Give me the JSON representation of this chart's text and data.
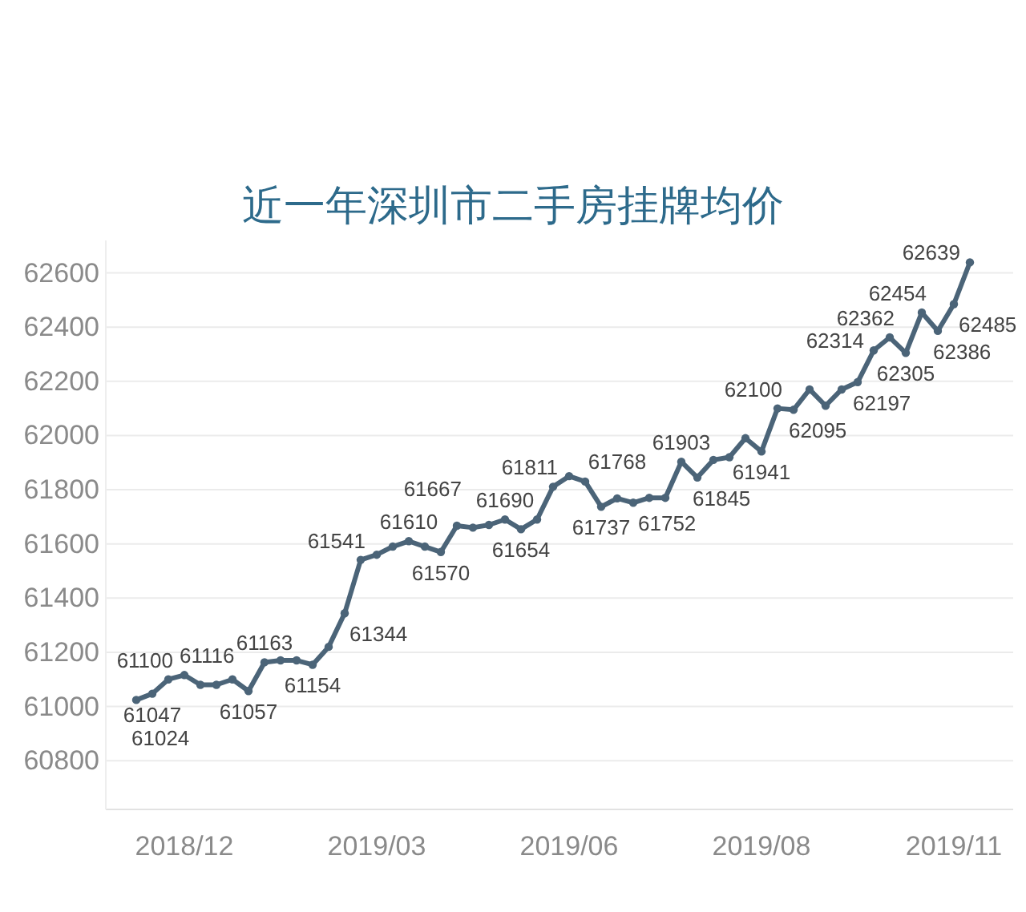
{
  "chart_data": {
    "type": "line",
    "title": "近一年深圳市二手房挂牌均价",
    "categories": [
      null,
      null,
      null,
      "2018/12",
      null,
      null,
      null,
      null,
      null,
      null,
      null,
      null,
      null,
      null,
      null,
      "2019/03",
      null,
      null,
      null,
      null,
      null,
      null,
      null,
      null,
      null,
      null,
      null,
      "2019/06",
      null,
      null,
      null,
      null,
      null,
      null,
      null,
      null,
      null,
      null,
      null,
      "2019/08",
      null,
      null,
      null,
      null,
      null,
      null,
      null,
      null,
      null,
      null,
      null,
      "2019/11",
      null
    ],
    "series": [
      {
        "color": "#4b6478",
        "values": [
          61024,
          61047,
          61100,
          61116,
          61080,
          61080,
          61100,
          61057,
          61163,
          61170,
          61170,
          61154,
          61220,
          61344,
          61541,
          61560,
          61590,
          61610,
          61590,
          61570,
          61667,
          61660,
          61670,
          61690,
          61654,
          61690,
          61811,
          61850,
          61830,
          61737,
          61768,
          61752,
          61770,
          61770,
          61903,
          61845,
          61910,
          61920,
          61990,
          61941,
          62100,
          62095,
          62170,
          62110,
          62170,
          62197,
          62314,
          62362,
          62305,
          62454,
          62386,
          62485,
          62639
        ],
        "value_labels": [
          "61024",
          "61047",
          "61100",
          "61116",
          null,
          null,
          null,
          "61057",
          "61163",
          null,
          null,
          "61154",
          null,
          "61344",
          "61541",
          null,
          null,
          "61610",
          null,
          "61570",
          "61667",
          null,
          null,
          "61690",
          "61654",
          null,
          "61811",
          null,
          null,
          "61737",
          "61768",
          "61752",
          null,
          null,
          "61903",
          "61845",
          null,
          null,
          null,
          "61941",
          "62100",
          "62095",
          null,
          null,
          null,
          "62197",
          "62314",
          "62362",
          "62305",
          "62454",
          "62386",
          "62485",
          "62639"
        ]
      }
    ],
    "ylim": [
      60620,
      62720
    ],
    "yticks": [
      60800,
      61000,
      61200,
      61400,
      61600,
      61800,
      62000,
      62200,
      62400,
      62600
    ],
    "grid": "y",
    "marker": "circle",
    "line_style": "solid"
  }
}
